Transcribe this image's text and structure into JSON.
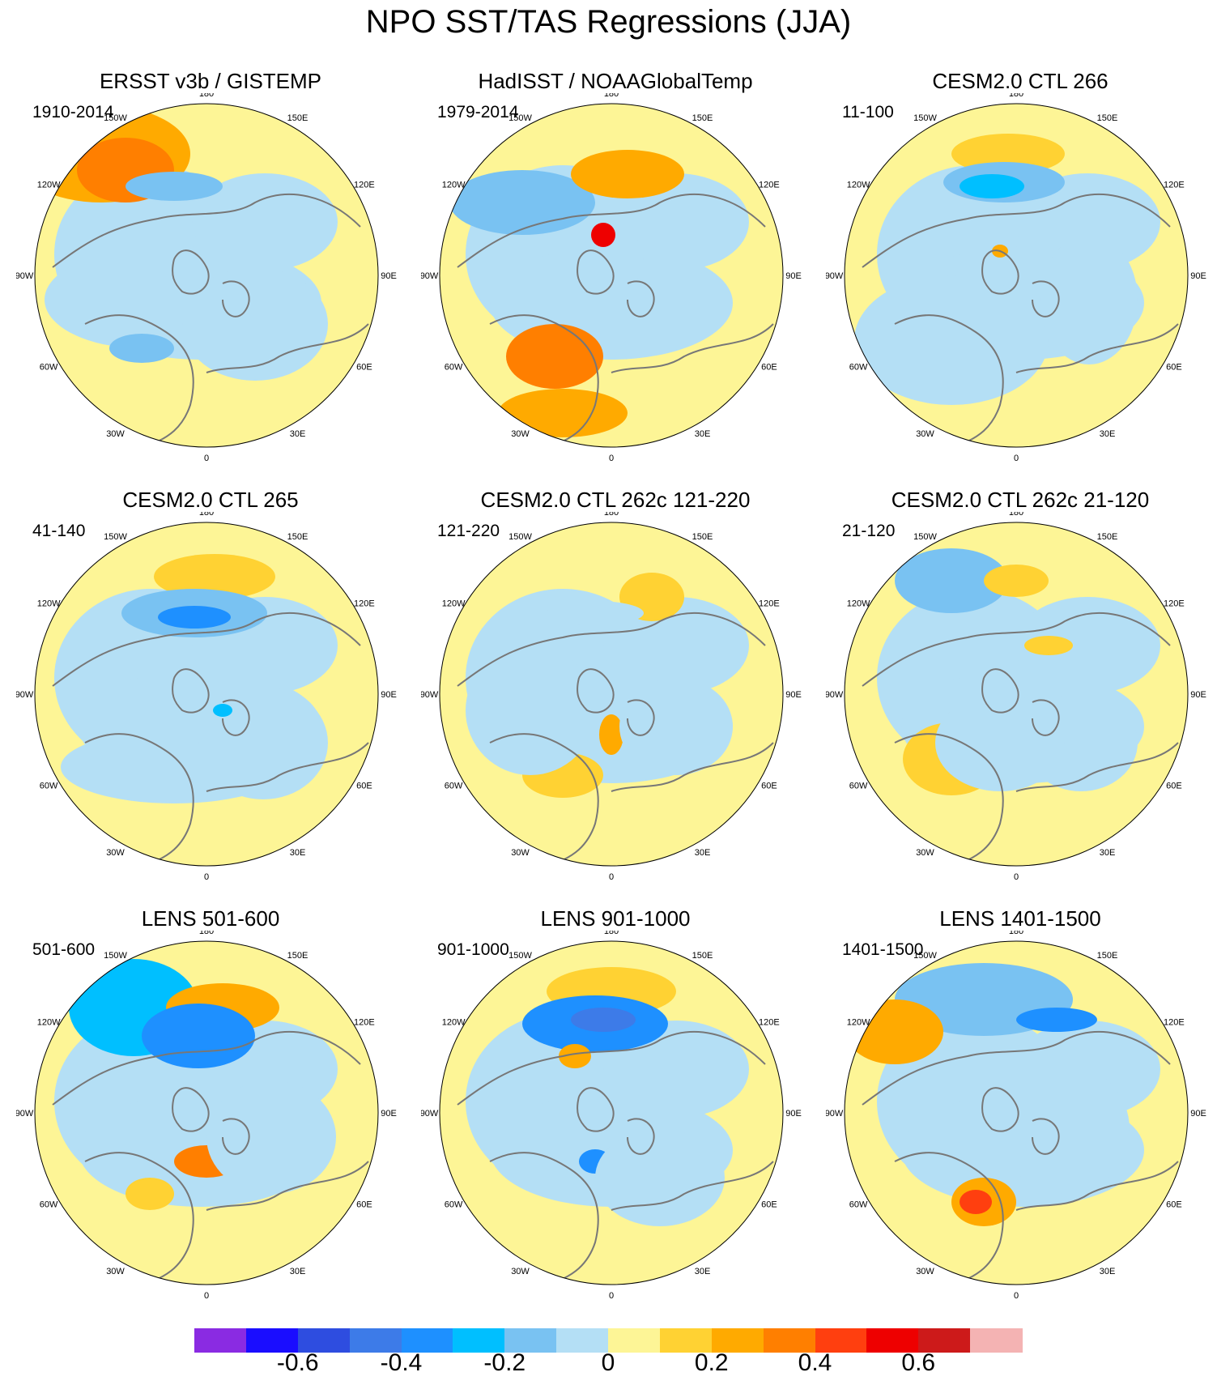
{
  "title": "NPO SST/TAS Regressions (JJA)",
  "panels": [
    {
      "title": "ERSST v3b / GISTEMP",
      "period": "1910-2014"
    },
    {
      "title": "HadISST / NOAAGlobalTemp",
      "period": "1979-2014"
    },
    {
      "title": "CESM2.0 CTL 266",
      "period": "11-100"
    },
    {
      "title": "CESM2.0 CTL 265",
      "period": "41-140"
    },
    {
      "title": "CESM2.0 CTL 262c 121-220",
      "period": "121-220"
    },
    {
      "title": "CESM2.0 CTL 262c 21-120",
      "period": "21-120"
    },
    {
      "title": "LENS 501-600",
      "period": "501-600"
    },
    {
      "title": "LENS 901-1000",
      "period": "901-1000"
    },
    {
      "title": "LENS 1401-1500",
      "period": "1401-1500"
    }
  ],
  "longitude_labels": [
    "180",
    "150E",
    "120E",
    "90E",
    "60E",
    "30E",
    "0",
    "30W",
    "60W",
    "90W",
    "120W",
    "150W"
  ],
  "colorbar": {
    "colors": [
      "#8a2be2",
      "#1a0dff",
      "#2e4de0",
      "#3d7be8",
      "#1e90ff",
      "#00bfff",
      "#79c2f2",
      "#b4dff5",
      "#fdf596",
      "#ffd233",
      "#ffaa00",
      "#ff7f00",
      "#ff3f0f",
      "#ee0000",
      "#cd1a1a",
      "#f4b3b3"
    ],
    "tick_labels": [
      "-0.6",
      "-0.4",
      "-0.2",
      "0",
      "0.2",
      "0.4",
      "0.6"
    ]
  },
  "legend_colors": {
    "positive_weak": "#fdf596",
    "negative_weak": "#b4dff5",
    "land_outline": "#777777"
  }
}
